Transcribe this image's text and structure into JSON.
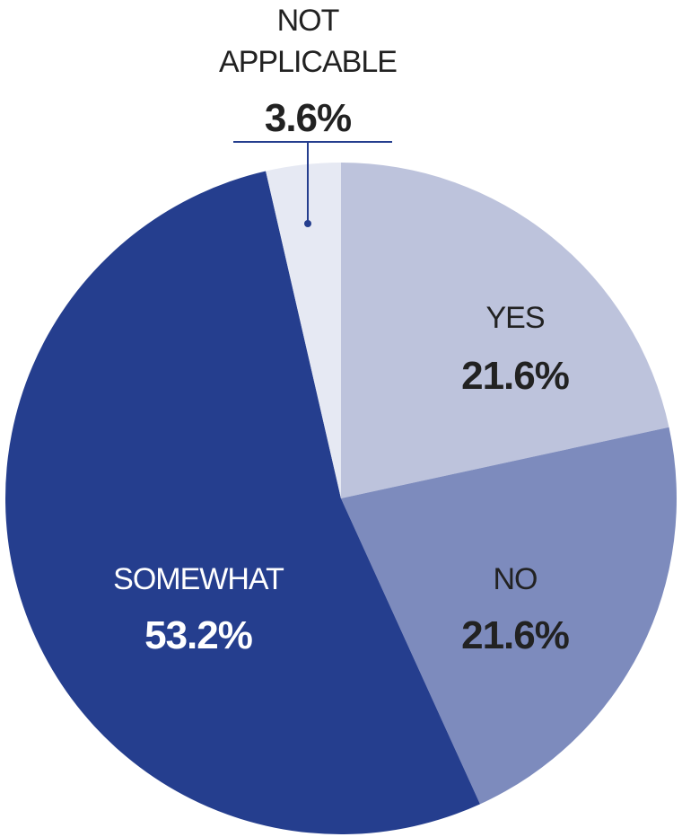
{
  "chart_data": {
    "type": "pie",
    "categories": [
      "YES",
      "NO",
      "SOMEWHAT",
      "NOT APPLICABLE"
    ],
    "values": [
      21.6,
      21.6,
      53.2,
      3.6
    ],
    "value_labels": [
      "21.6%",
      "21.6%",
      "53.2%",
      "3.6%"
    ],
    "colors": [
      "#bdc3dc",
      "#7d8bbd",
      "#253e8e",
      "#e6e9f3"
    ],
    "label_colors": [
      "#222222",
      "#222222",
      "#ffffff",
      "#222222"
    ],
    "start": "12 o'clock, clockwise",
    "not_applicable_label_lines": [
      "NOT",
      "APPLICABLE"
    ]
  }
}
